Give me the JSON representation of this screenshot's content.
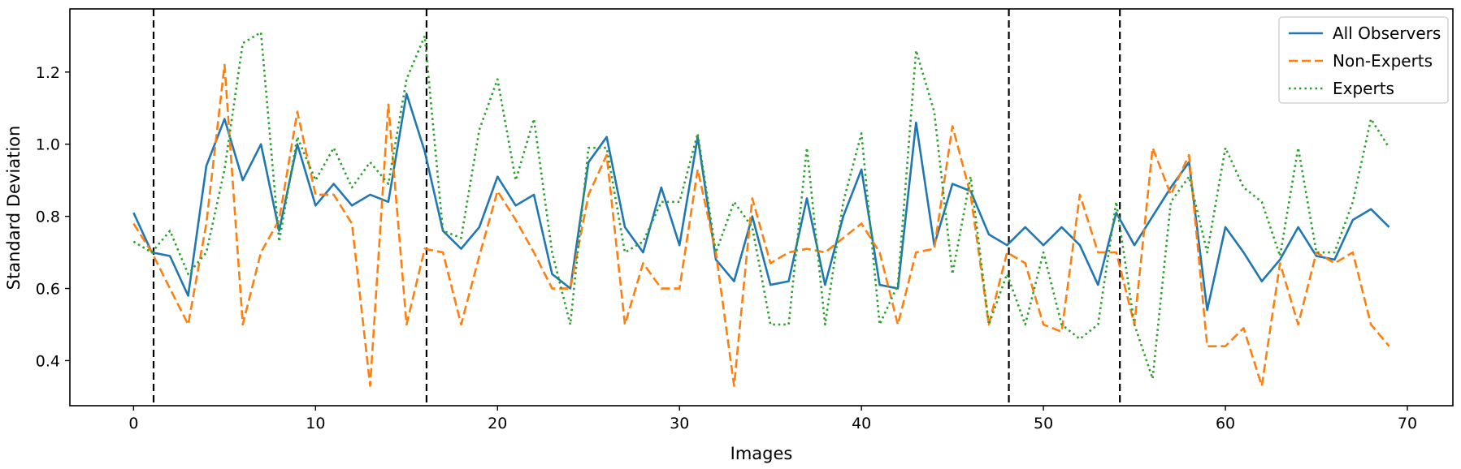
{
  "chart_data": {
    "type": "line",
    "title": "",
    "xlabel": "Images",
    "ylabel": "Standard Deviation",
    "xlim": [
      -3.5,
      72.5
    ],
    "ylim": [
      0.275,
      1.375
    ],
    "xticks": [
      0,
      10,
      20,
      30,
      40,
      50,
      60,
      70
    ],
    "yticks": [
      0.4,
      0.6,
      0.8,
      1.0,
      1.2
    ],
    "xtick_labels": [
      "0",
      "10",
      "20",
      "30",
      "40",
      "50",
      "60",
      "70"
    ],
    "ytick_labels": [
      "0.4",
      "0.6",
      "0.8",
      "1.0",
      "1.2"
    ],
    "grid": false,
    "legend_position": "top-right",
    "vlines": [
      1.1,
      16.1,
      48.1,
      54.2
    ],
    "vline_style": "dashed-black",
    "x": [
      0,
      1,
      2,
      3,
      4,
      5,
      6,
      7,
      8,
      9,
      10,
      11,
      12,
      13,
      14,
      15,
      16,
      17,
      18,
      19,
      20,
      21,
      22,
      23,
      24,
      25,
      26,
      27,
      28,
      29,
      30,
      31,
      32,
      33,
      34,
      35,
      36,
      37,
      38,
      39,
      40,
      41,
      42,
      43,
      44,
      45,
      46,
      47,
      48,
      49,
      50,
      51,
      52,
      53,
      54,
      55,
      56,
      57,
      58,
      59,
      60,
      61,
      62,
      63,
      64,
      65,
      66,
      67,
      68,
      69
    ],
    "series": [
      {
        "name": "All Observers",
        "color": "#1f77b4",
        "dash": "solid",
        "values": [
          0.81,
          0.7,
          0.69,
          0.58,
          0.94,
          1.07,
          0.9,
          1.0,
          0.76,
          1.0,
          0.83,
          0.89,
          0.83,
          0.86,
          0.84,
          1.14,
          0.98,
          0.76,
          0.71,
          0.77,
          0.91,
          0.83,
          0.86,
          0.64,
          0.6,
          0.95,
          1.02,
          0.77,
          0.7,
          0.88,
          0.72,
          1.02,
          0.68,
          0.62,
          0.8,
          0.61,
          0.62,
          0.85,
          0.61,
          0.8,
          0.93,
          0.61,
          0.6,
          1.06,
          0.72,
          0.89,
          0.87,
          0.75,
          0.72,
          0.77,
          0.72,
          0.77,
          0.72,
          0.61,
          0.81,
          0.72,
          0.8,
          0.88,
          0.95,
          0.54,
          0.77,
          0.7,
          0.62,
          0.68,
          0.77,
          0.69,
          0.68,
          0.79,
          0.82,
          0.77
        ]
      },
      {
        "name": "Non-Experts",
        "color": "#ff7f0e",
        "dash": "dashed",
        "values": [
          0.78,
          0.7,
          0.6,
          0.5,
          0.78,
          1.22,
          0.5,
          0.7,
          0.79,
          1.09,
          0.86,
          0.86,
          0.78,
          0.33,
          1.11,
          0.5,
          0.71,
          0.7,
          0.5,
          0.69,
          0.87,
          0.79,
          0.7,
          0.6,
          0.6,
          0.86,
          0.97,
          0.5,
          0.67,
          0.6,
          0.6,
          0.93,
          0.7,
          0.33,
          0.85,
          0.67,
          0.7,
          0.71,
          0.7,
          0.74,
          0.78,
          0.7,
          0.5,
          0.7,
          0.71,
          1.05,
          0.86,
          0.5,
          0.7,
          0.67,
          0.5,
          0.48,
          0.86,
          0.7,
          0.7,
          0.5,
          0.99,
          0.86,
          0.97,
          0.44,
          0.44,
          0.49,
          0.33,
          0.67,
          0.5,
          0.7,
          0.67,
          0.7,
          0.5,
          0.44
        ]
      },
      {
        "name": "Experts",
        "color": "#2ca02c",
        "dash": "dotted",
        "values": [
          0.73,
          0.7,
          0.76,
          0.64,
          0.7,
          0.93,
          1.28,
          1.31,
          0.73,
          1.02,
          0.9,
          0.99,
          0.88,
          0.95,
          0.89,
          1.18,
          1.3,
          0.76,
          0.74,
          1.04,
          1.18,
          0.9,
          1.07,
          0.7,
          0.5,
          0.99,
          0.99,
          0.7,
          0.73,
          0.84,
          0.84,
          1.03,
          0.7,
          0.84,
          0.77,
          0.5,
          0.5,
          0.99,
          0.5,
          0.84,
          1.03,
          0.5,
          0.61,
          1.26,
          1.09,
          0.64,
          0.91,
          0.5,
          0.64,
          0.5,
          0.7,
          0.5,
          0.46,
          0.5,
          0.84,
          0.5,
          0.35,
          0.84,
          0.91,
          0.7,
          0.99,
          0.88,
          0.84,
          0.69,
          0.99,
          0.7,
          0.7,
          0.84,
          1.07,
          0.99
        ]
      }
    ]
  }
}
